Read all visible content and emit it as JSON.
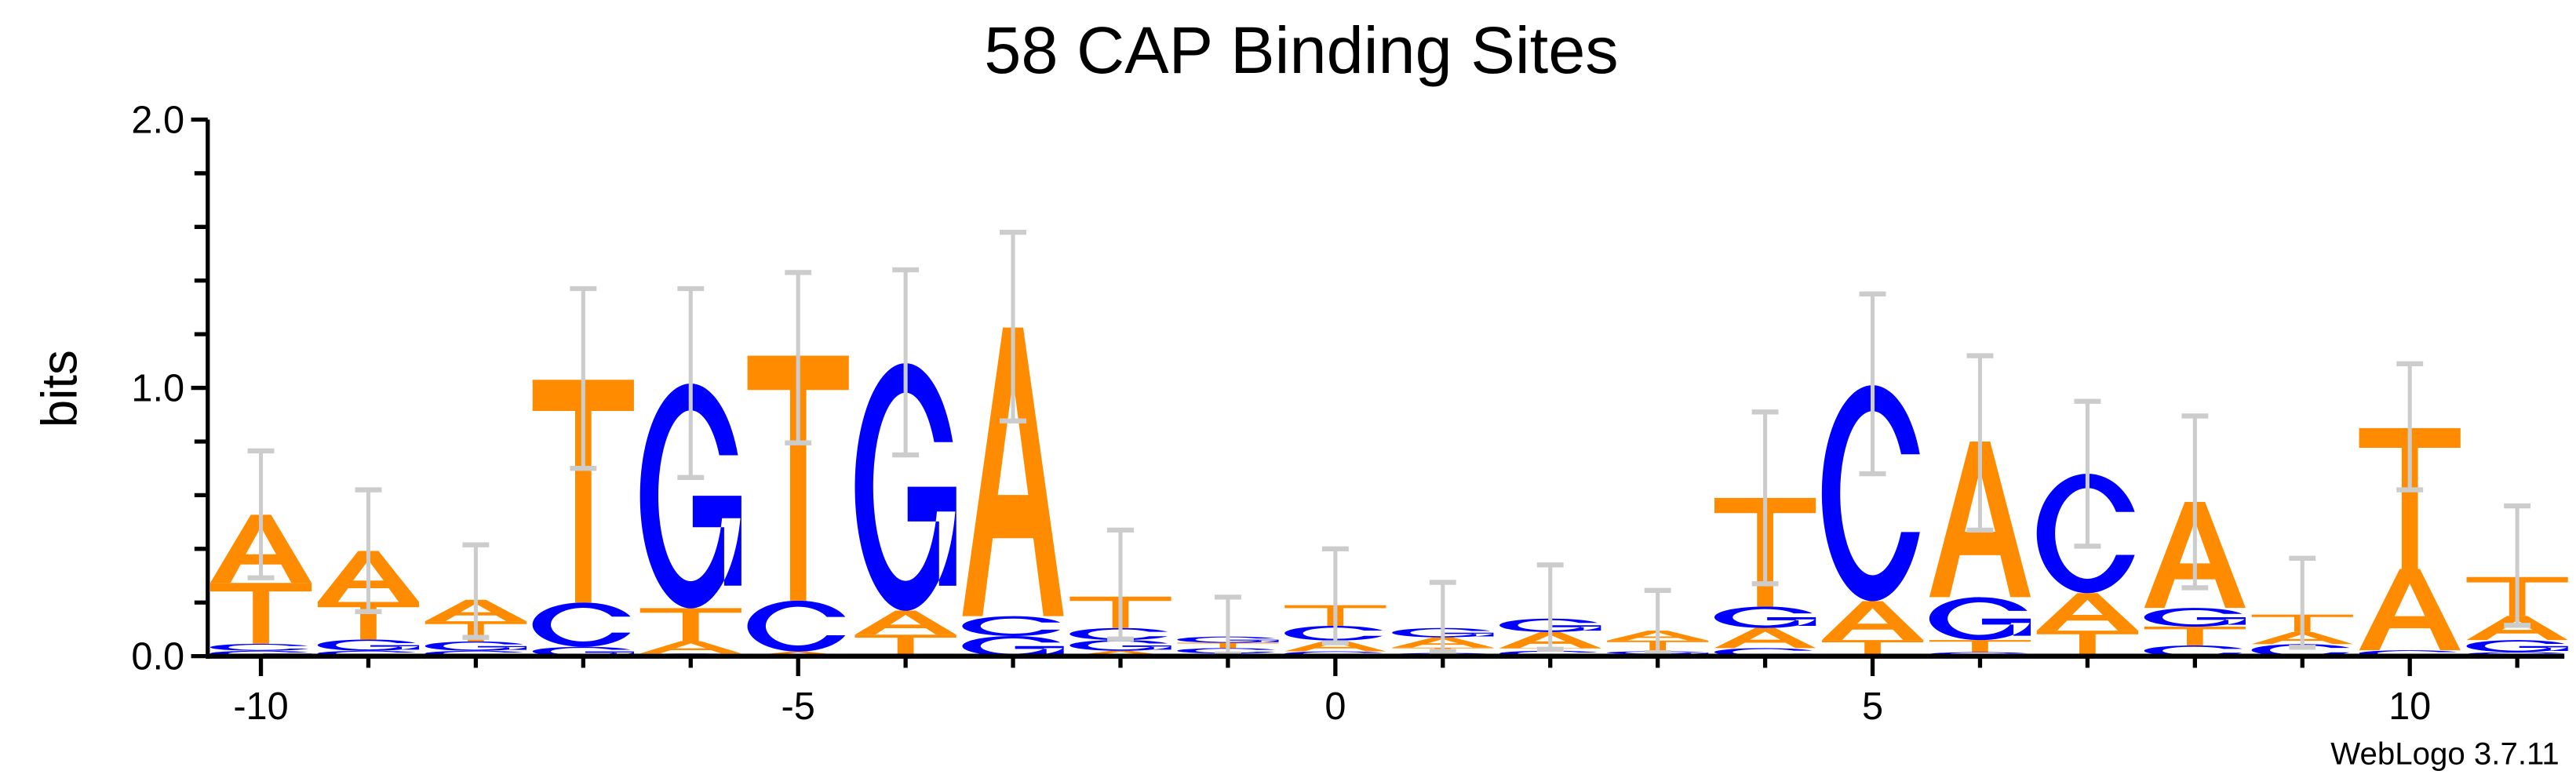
{
  "chart_data": {
    "type": "sequence-logo",
    "title": "58 CAP Binding Sites",
    "ylabel": "bits",
    "xlabel": "",
    "ylim": [
      0,
      2.0
    ],
    "yticks": [
      "0.0",
      "1.0",
      "2.0"
    ],
    "ytick_values": [
      0,
      1,
      2
    ],
    "xticks": [
      "-10",
      "-5",
      "0",
      "5",
      "10"
    ],
    "xtick_values": [
      -10,
      -5,
      0,
      5,
      10
    ],
    "xlim": [
      -10,
      11
    ],
    "colors": {
      "A": "#FF8C00",
      "T": "#FF8C00",
      "C": "#0000FF",
      "G": "#0000FF",
      "error_bar": "#CCCCCC"
    },
    "positions": [
      {
        "pos": -10,
        "stack": [
          [
            "G",
            0.02
          ],
          [
            "C",
            0.026
          ],
          [
            "T",
            0.227
          ],
          [
            "A",
            0.254
          ]
        ],
        "err": [
          0.292,
          0.765
        ]
      },
      {
        "pos": -9,
        "stack": [
          [
            "C",
            0.02
          ],
          [
            "G",
            0.042
          ],
          [
            "T",
            0.14
          ],
          [
            "A",
            0.19
          ]
        ],
        "err": [
          0.166,
          0.62
        ]
      },
      {
        "pos": -8,
        "stack": [
          [
            "C",
            0.02
          ],
          [
            "G",
            0.035
          ],
          [
            "T",
            0.075
          ],
          [
            "A",
            0.08
          ]
        ],
        "err": [
          0.07,
          0.415
        ]
      },
      {
        "pos": -7,
        "stack": [
          [
            "G",
            0.035
          ],
          [
            "C",
            0.165
          ],
          [
            "T",
            0.83
          ]
        ],
        "err": [
          0.7,
          1.37
        ]
      },
      {
        "pos": -6,
        "stack": [
          [
            "C",
            0.01
          ],
          [
            "A",
            0.046
          ],
          [
            "T",
            0.123
          ],
          [
            "G",
            0.838
          ]
        ],
        "err": [
          0.666,
          1.37
        ]
      },
      {
        "pos": -5,
        "stack": [
          [
            "A",
            0.017
          ],
          [
            "C",
            0.19
          ],
          [
            "T",
            0.913
          ]
        ],
        "err": [
          0.795,
          1.43
        ]
      },
      {
        "pos": -4,
        "stack": [
          [
            "T",
            0.08
          ],
          [
            "A",
            0.09
          ],
          [
            "G",
            0.923
          ]
        ],
        "err": [
          0.75,
          1.44
        ]
      },
      {
        "pos": -3,
        "stack": [
          [
            "G",
            0.075
          ],
          [
            "C",
            0.074
          ],
          [
            "A",
            1.076
          ]
        ],
        "err": [
          0.877,
          1.58
        ]
      },
      {
        "pos": -2,
        "stack": [
          [
            "A",
            0.02
          ],
          [
            "G",
            0.04
          ],
          [
            "C",
            0.045
          ],
          [
            "T",
            0.117
          ]
        ],
        "err": [
          0.064,
          0.47
        ]
      },
      {
        "pos": -1,
        "stack": [
          [
            "A",
            0.01
          ],
          [
            "C",
            0.02
          ],
          [
            "T",
            0.02
          ],
          [
            "G",
            0.023
          ]
        ],
        "err": [
          0.008,
          0.22
        ]
      },
      {
        "pos": 0,
        "stack": [
          [
            "G",
            0.018
          ],
          [
            "A",
            0.04
          ],
          [
            "C",
            0.055
          ],
          [
            "T",
            0.077
          ]
        ],
        "err": [
          0.05,
          0.4
        ]
      },
      {
        "pos": 1,
        "stack": [
          [
            "C",
            0.012
          ],
          [
            "T",
            0.02
          ],
          [
            "A",
            0.038
          ],
          [
            "G",
            0.035
          ]
        ],
        "err": [
          0.018,
          0.275
        ]
      },
      {
        "pos": 2,
        "stack": [
          [
            "C",
            0.02
          ],
          [
            "T",
            0.01
          ],
          [
            "A",
            0.06
          ],
          [
            "G",
            0.05
          ]
        ],
        "err": [
          0.026,
          0.34
        ]
      },
      {
        "pos": 3,
        "stack": [
          [
            "C",
            0.008
          ],
          [
            "G",
            0.01
          ],
          [
            "T",
            0.04
          ],
          [
            "A",
            0.037
          ]
        ],
        "err": [
          0.013,
          0.245
        ]
      },
      {
        "pos": 4,
        "stack": [
          [
            "C",
            0.03
          ],
          [
            "A",
            0.075
          ],
          [
            "G",
            0.08
          ],
          [
            "T",
            0.405
          ]
        ],
        "err": [
          0.27,
          0.91
        ]
      },
      {
        "pos": 5,
        "stack": [
          [
            "T",
            0.06
          ],
          [
            "A",
            0.145
          ],
          [
            "C",
            0.805
          ]
        ],
        "err": [
          0.68,
          1.35
        ]
      },
      {
        "pos": 6,
        "stack": [
          [
            "C",
            0.015
          ],
          [
            "T",
            0.045
          ],
          [
            "G",
            0.16
          ],
          [
            "A",
            0.58
          ]
        ],
        "err": [
          0.47,
          1.12
        ]
      },
      {
        "pos": 7,
        "stack": [
          [
            "T",
            0.095
          ],
          [
            "A",
            0.14
          ],
          [
            "C",
            0.445
          ]
        ],
        "err": [
          0.41,
          0.95
        ]
      },
      {
        "pos": 8,
        "stack": [
          [
            "C",
            0.04
          ],
          [
            "T",
            0.07
          ],
          [
            "G",
            0.07
          ],
          [
            "A",
            0.395
          ]
        ],
        "err": [
          0.255,
          0.895
        ]
      },
      {
        "pos": 9,
        "stack": [
          [
            "C",
            0.045
          ],
          [
            "A",
            0.045
          ],
          [
            "T",
            0.065
          ]
        ],
        "err": [
          0.033,
          0.365
        ]
      },
      {
        "pos": 10,
        "stack": [
          [
            "C",
            0.022
          ],
          [
            "A",
            0.303
          ],
          [
            "T",
            0.525
          ]
        ],
        "err": [
          0.62,
          1.09
        ]
      },
      {
        "pos": 11,
        "stack": [
          [
            "C",
            0.015
          ],
          [
            "G",
            0.045
          ],
          [
            "A",
            0.09
          ],
          [
            "T",
            0.145
          ]
        ],
        "err": [
          0.115,
          0.56
        ]
      }
    ]
  },
  "footer": {
    "version": "WebLogo 3.7.11"
  }
}
